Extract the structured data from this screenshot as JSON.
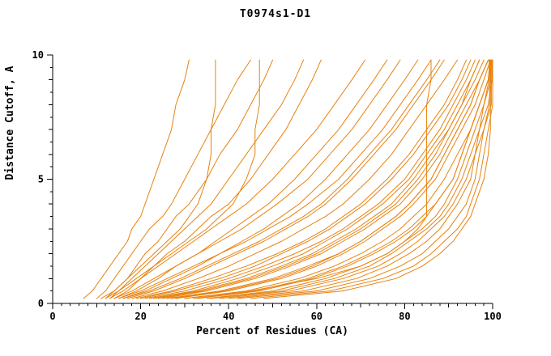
{
  "style": {
    "series_color": "#e8820e",
    "axis_color": "#000000",
    "background": "#ffffff"
  },
  "axes": {
    "x": {
      "major_ticks": [
        0,
        20,
        40,
        60,
        80,
        100
      ],
      "minor_step": 2,
      "medium_step": 10,
      "major_step": 20
    },
    "y": {
      "major_ticks": [
        0,
        5,
        10
      ],
      "minor_step": 0.5,
      "medium_step": 1,
      "major_step": 5
    }
  },
  "chart_data": {
    "type": "line",
    "title": "T0974s1-D1",
    "xlabel": "Percent of Residues (CA)",
    "ylabel": "Distance Cutoff, A",
    "xlim": [
      0,
      100
    ],
    "ylim": [
      0,
      10
    ],
    "grid": false,
    "legend": "none",
    "y_levels": [
      0.2,
      0.5,
      1,
      1.5,
      2,
      2.5,
      3,
      3.5,
      4,
      5,
      6,
      7,
      8,
      9,
      9.8
    ],
    "series": [
      {
        "x": [
          7,
          9,
          11,
          13,
          15,
          17,
          18,
          20,
          21,
          23,
          25,
          27,
          28,
          30,
          31
        ]
      },
      {
        "x": [
          10,
          12,
          14,
          16,
          18,
          20,
          22,
          25,
          27,
          30,
          33,
          36,
          39,
          42,
          45
        ]
      },
      {
        "x": [
          12,
          14,
          17,
          19,
          21,
          24,
          26,
          28,
          31,
          35,
          38,
          42,
          45,
          48,
          50
        ]
      },
      {
        "x": [
          13,
          15,
          18,
          21,
          24,
          27,
          30,
          33,
          36,
          40,
          44,
          48,
          52,
          55,
          57
        ]
      },
      {
        "x": [
          14,
          17,
          20,
          23,
          26,
          30,
          33,
          36,
          40,
          45,
          49,
          53,
          56,
          59,
          61
        ]
      },
      {
        "x": [
          13,
          16,
          20,
          24,
          28,
          32,
          36,
          40,
          44,
          50,
          55,
          60,
          64,
          68,
          71
        ]
      },
      {
        "x": [
          15,
          19,
          24,
          28,
          33,
          37,
          41,
          45,
          49,
          55,
          60,
          65,
          69,
          73,
          76
        ]
      },
      {
        "x": [
          14,
          18,
          23,
          28,
          33,
          38,
          43,
          47,
          51,
          58,
          63,
          68,
          72,
          76,
          79
        ]
      },
      {
        "x": [
          16,
          21,
          27,
          33,
          38,
          43,
          48,
          52,
          56,
          62,
          67,
          72,
          76,
          80,
          83
        ]
      },
      {
        "x": [
          15,
          20,
          26,
          32,
          38,
          44,
          49,
          54,
          58,
          65,
          70,
          75,
          79,
          83,
          86
        ]
      },
      {
        "x": [
          17,
          23,
          30,
          36,
          42,
          48,
          53,
          58,
          62,
          68,
          73,
          78,
          82,
          86,
          89
        ]
      },
      {
        "x": [
          18,
          25,
          33,
          40,
          46,
          52,
          57,
          62,
          66,
          72,
          77,
          81,
          85,
          89,
          92
        ]
      },
      {
        "x": [
          20,
          28,
          38,
          46,
          52,
          58,
          63,
          67,
          71,
          77,
          82,
          86,
          90,
          93,
          95
        ]
      },
      {
        "x": [
          22,
          32,
          42,
          50,
          57,
          62,
          67,
          71,
          75,
          81,
          85,
          89,
          92,
          95,
          97
        ]
      },
      {
        "x": [
          25,
          35,
          46,
          54,
          61,
          66,
          71,
          75,
          79,
          84,
          88,
          91,
          94,
          97,
          99
        ]
      },
      {
        "x": [
          28,
          40,
          52,
          60,
          66,
          71,
          75,
          79,
          82,
          87,
          90,
          93,
          96,
          98,
          99.5
        ]
      },
      {
        "x": [
          30,
          44,
          56,
          64,
          70,
          75,
          79,
          82,
          85,
          89,
          92,
          95,
          97,
          99,
          99.8
        ]
      },
      {
        "x": [
          26,
          38,
          50,
          58,
          65,
          70,
          74,
          78,
          81,
          86,
          89,
          92,
          95,
          97,
          99
        ]
      },
      {
        "x": [
          32,
          46,
          58,
          66,
          72,
          77,
          81,
          84,
          87,
          91,
          93,
          95,
          97,
          99,
          100
        ]
      },
      {
        "x": [
          35,
          50,
          62,
          70,
          76,
          80,
          84,
          87,
          89,
          92,
          94,
          96,
          98,
          99.6,
          99.6
        ]
      },
      {
        "x": [
          38,
          54,
          66,
          74,
          79,
          83,
          86,
          89,
          91,
          94,
          96,
          97,
          99,
          99.9,
          99.9
        ]
      },
      {
        "x": [
          40,
          57,
          69,
          76,
          81,
          85,
          88,
          90,
          92,
          95,
          96,
          98,
          99.3,
          99.3,
          99.3
        ]
      },
      {
        "x": [
          42,
          60,
          72,
          79,
          84,
          87,
          90,
          92,
          94,
          96,
          97,
          98,
          99.7,
          99.7,
          99.7
        ]
      },
      {
        "x": [
          45,
          63,
          75,
          82,
          86,
          89,
          92,
          94,
          95,
          97,
          98,
          99,
          100,
          100,
          100
        ]
      },
      {
        "x": [
          48,
          66,
          78,
          84,
          88,
          91,
          93,
          95,
          96,
          98,
          99,
          99.5,
          99.5,
          99.5,
          99.5
        ]
      },
      {
        "x": [
          19,
          27,
          36,
          44,
          51,
          57,
          62,
          66,
          70,
          76,
          81,
          85,
          89,
          92,
          94
        ]
      },
      {
        "x": [
          21,
          30,
          40,
          48,
          55,
          61,
          66,
          70,
          74,
          80,
          84,
          88,
          91,
          94,
          96
        ]
      },
      {
        "x": [
          24,
          34,
          45,
          53,
          60,
          65,
          70,
          74,
          78,
          83,
          87,
          90,
          93,
          96,
          98
        ]
      },
      {
        "x": [
          27,
          39,
          51,
          59,
          65,
          70,
          74,
          78,
          81,
          86,
          89,
          92,
          95,
          97,
          99
        ]
      },
      {
        "x": [
          33,
          47,
          59,
          67,
          73,
          78,
          82,
          85,
          87,
          91,
          93,
          95,
          97,
          99,
          99.4
        ]
      },
      {
        "x": [
          30,
          45,
          60,
          70,
          76,
          80,
          83,
          85,
          85,
          85,
          85,
          85,
          85,
          86,
          86
        ]
      },
      {
        "x": [
          12,
          15,
          19,
          23,
          27,
          31,
          35,
          38,
          41,
          44,
          46,
          46,
          47,
          47,
          47
        ]
      },
      {
        "x": [
          11,
          14,
          17,
          20,
          23,
          26,
          29,
          31,
          33,
          35,
          36,
          36,
          37,
          37,
          37
        ]
      },
      {
        "x": [
          16,
          22,
          29,
          35,
          41,
          47,
          52,
          57,
          61,
          67,
          72,
          77,
          81,
          85,
          88
        ]
      },
      {
        "x": [
          23,
          33,
          44,
          52,
          59,
          64,
          69,
          73,
          77,
          82,
          86,
          90,
          93,
          95,
          97
        ]
      },
      {
        "x": [
          36,
          52,
          64,
          72,
          77,
          81,
          85,
          88,
          90,
          93,
          95,
          97,
          98,
          99.2,
          99.2
        ]
      }
    ]
  }
}
